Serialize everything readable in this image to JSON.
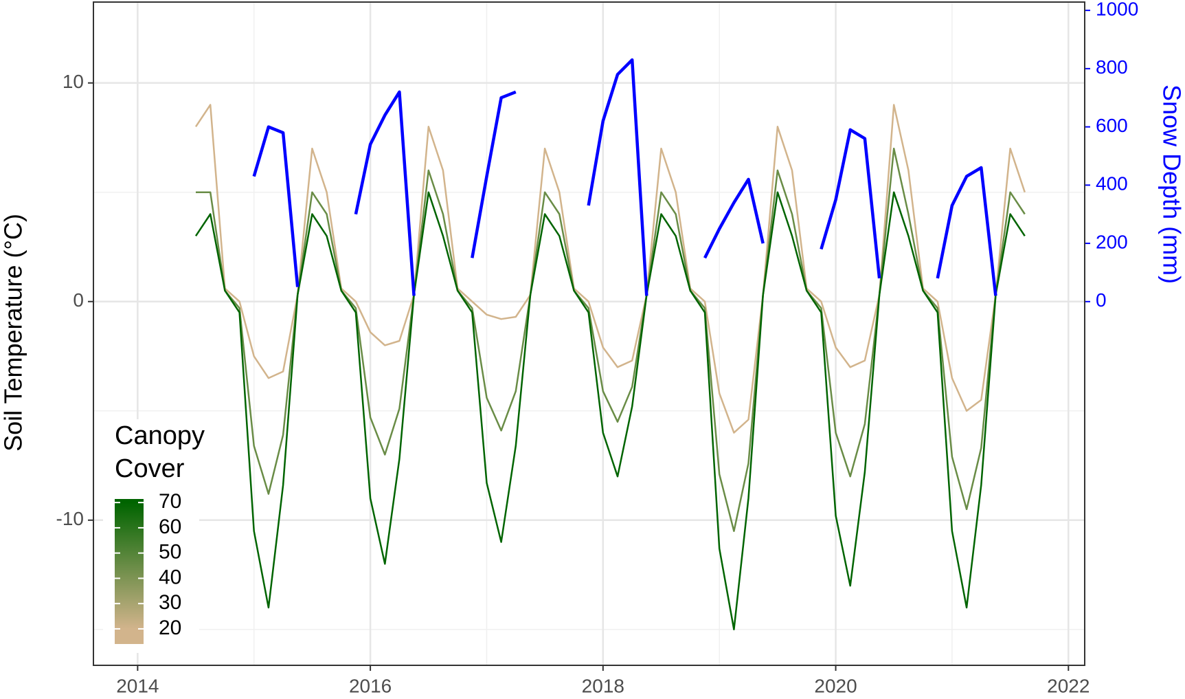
{
  "chart_data": {
    "type": "line",
    "y_label": "Soil Temperature (°C)",
    "y2_label": "Snow Depth (mm)",
    "xlim": [
      2013.62,
      2022.14
    ],
    "xticks": [
      2014,
      2016,
      2018,
      2020,
      2022
    ],
    "xminor": [
      2015,
      2017,
      2019,
      2021
    ],
    "ylim": [
      -16.64,
      13.7
    ],
    "yticks": [
      -10,
      0,
      10
    ],
    "yminor": [
      -15,
      -5,
      5
    ],
    "y2lim": [
      -1249,
      1028.6
    ],
    "y2ticks": [
      0,
      200,
      400,
      600,
      800,
      1000
    ],
    "grid": true,
    "colorbar": {
      "title": [
        "Canopy",
        "Cover"
      ],
      "ticks": [
        20,
        30,
        40,
        50,
        60,
        70
      ],
      "lim": [
        14,
        71.4
      ],
      "colors": [
        "#d2b48c",
        "#006400"
      ]
    },
    "x": [
      2014.5,
      2014.625,
      2014.75,
      2014.875,
      2015.0,
      2015.125,
      2015.25,
      2015.375,
      2015.5,
      2015.625,
      2015.75,
      2015.875,
      2016.0,
      2016.125,
      2016.25,
      2016.375,
      2016.5,
      2016.625,
      2016.75,
      2016.875,
      2017.0,
      2017.125,
      2017.25,
      2017.375,
      2017.5,
      2017.625,
      2017.75,
      2017.875,
      2018.0,
      2018.125,
      2018.25,
      2018.375,
      2018.5,
      2018.625,
      2018.75,
      2018.875,
      2019.0,
      2019.125,
      2019.25,
      2019.375,
      2019.5,
      2019.625,
      2019.75,
      2019.875,
      2020.0,
      2020.125,
      2020.25,
      2020.375,
      2020.5,
      2020.625,
      2020.75,
      2020.875,
      2021.0,
      2021.125,
      2021.25,
      2021.375,
      2021.5,
      2021.625
    ],
    "series": [
      {
        "cover": 20,
        "values": [
          8,
          9,
          0.6,
          0,
          -2.5,
          -3.5,
          -3.2,
          0.3,
          7,
          5,
          0.6,
          0,
          -1.4,
          -2,
          -1.8,
          0.3,
          8,
          6,
          0.6,
          0,
          -0.6,
          -0.8,
          -0.7,
          0.3,
          7,
          5,
          0.6,
          0,
          -2.1,
          -3,
          -2.7,
          0.3,
          7,
          5,
          0.6,
          0,
          -4.2,
          -6,
          -5.4,
          0.3,
          8,
          6,
          0.6,
          0,
          -2.1,
          -3,
          -2.7,
          0.3,
          9,
          6,
          0.6,
          0,
          -3.5,
          -5,
          -4.5,
          0.3,
          7,
          5
        ]
      },
      {
        "cover": 45,
        "values": [
          5,
          5,
          0.5,
          -0.3,
          -6.6,
          -8.8,
          -6.1,
          0.3,
          5,
          4,
          0.5,
          -0.3,
          -5.3,
          -7,
          -4.9,
          0.3,
          6,
          4,
          0.5,
          -0.3,
          -4.4,
          -5.9,
          -4.1,
          0.3,
          5,
          4,
          0.5,
          -0.3,
          -4.1,
          -5.5,
          -3.9,
          0.3,
          5,
          4,
          0.5,
          -0.3,
          -7.9,
          -10.5,
          -7.4,
          0.3,
          6,
          4,
          0.5,
          -0.3,
          -6,
          -8,
          -5.6,
          0.3,
          7,
          4,
          0.5,
          -0.3,
          -7.1,
          -9.5,
          -6.7,
          0.3,
          5,
          4
        ]
      },
      {
        "cover": 70,
        "values": [
          3,
          4,
          0.5,
          -0.5,
          -10.5,
          -14,
          -8.4,
          0.3,
          4,
          3,
          0.5,
          -0.5,
          -9,
          -12,
          -7.2,
          0.3,
          5,
          3,
          0.5,
          -0.5,
          -8.3,
          -11,
          -6.6,
          0.3,
          4,
          3,
          0.5,
          -0.5,
          -6,
          -8,
          -4.8,
          0.3,
          4,
          3,
          0.5,
          -0.5,
          -11.3,
          -15,
          -9,
          0.3,
          5,
          3,
          0.5,
          -0.5,
          -9.8,
          -13,
          -7.8,
          0.3,
          5,
          3,
          0.5,
          -0.5,
          -10.5,
          -14,
          -8.4,
          0.3,
          4,
          3
        ]
      },
      {
        "axis": "y2",
        "color": "#0000ff",
        "values": [
          null,
          null,
          null,
          null,
          430,
          600,
          580,
          50,
          null,
          null,
          null,
          300,
          540,
          640,
          720,
          20,
          null,
          null,
          null,
          150,
          430,
          700,
          720,
          null,
          null,
          null,
          null,
          330,
          620,
          780,
          830,
          20,
          null,
          null,
          null,
          150,
          250,
          340,
          420,
          200,
          null,
          null,
          null,
          180,
          350,
          590,
          560,
          80,
          null,
          null,
          null,
          80,
          330,
          430,
          460,
          20,
          null,
          null
        ]
      }
    ]
  }
}
